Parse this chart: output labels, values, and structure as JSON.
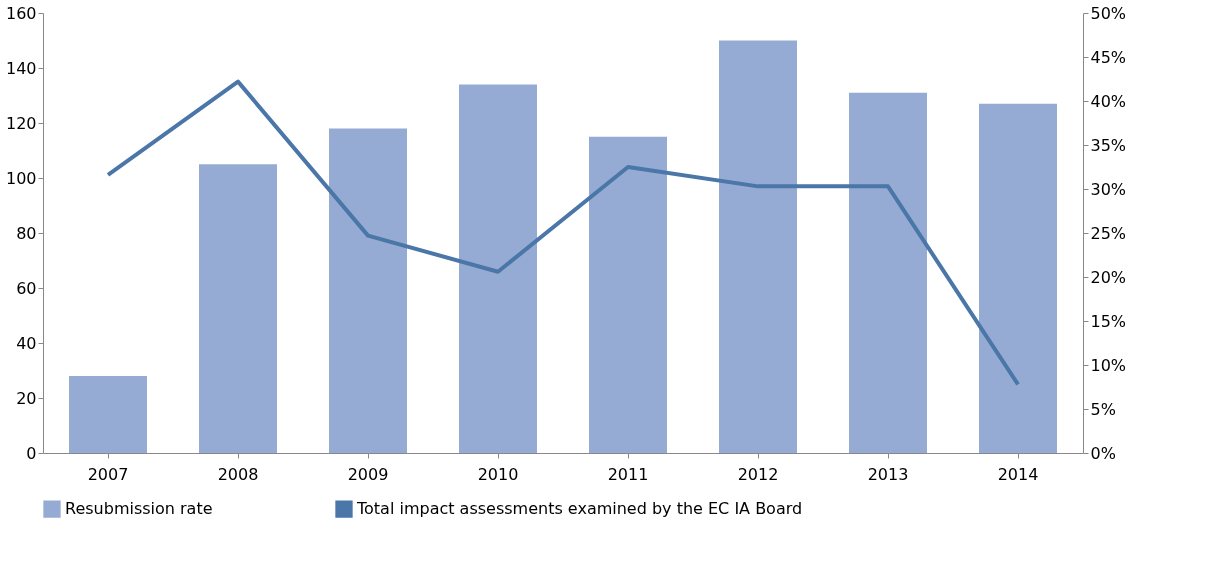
{
  "chart_data": {
    "type": "bar",
    "categories": [
      "2007",
      "2008",
      "2009",
      "2010",
      "2011",
      "2012",
      "2013",
      "2014"
    ],
    "series": [
      {
        "name": "Resubmission rate",
        "color": "#95abd3",
        "values": [
          28,
          105,
          118,
          134,
          115,
          150,
          131,
          127
        ]
      },
      {
        "name": "Total impact assessments examined by the EC IA Board",
        "type": "line",
        "axis": "y2",
        "color": "#4a76a8",
        "values": [
          31.6,
          42.2,
          24.7,
          20.6,
          32.5,
          30.3,
          30.3,
          7.8
        ]
      }
    ],
    "ylim": [
      0,
      160
    ],
    "yticks": [
      0,
      20,
      40,
      60,
      80,
      100,
      120,
      140,
      160
    ],
    "y2lim": [
      0,
      50
    ],
    "y2ticks": [
      {
        "value": 0,
        "label": "0%"
      },
      {
        "value": 5,
        "label": "5%"
      },
      {
        "value": 10,
        "label": "10%"
      },
      {
        "value": 15,
        "label": "15%"
      },
      {
        "value": 20,
        "label": "20%"
      },
      {
        "value": 25,
        "label": "25%"
      },
      {
        "value": 30,
        "label": "30%"
      },
      {
        "value": 35,
        "label": "35%"
      },
      {
        "value": 40,
        "label": "40%"
      },
      {
        "value": 45,
        "label": "45%"
      },
      {
        "value": 50,
        "label": "50%"
      }
    ],
    "grid": false,
    "legend": "bottom",
    "marker": "none",
    "line_style": "solid"
  }
}
